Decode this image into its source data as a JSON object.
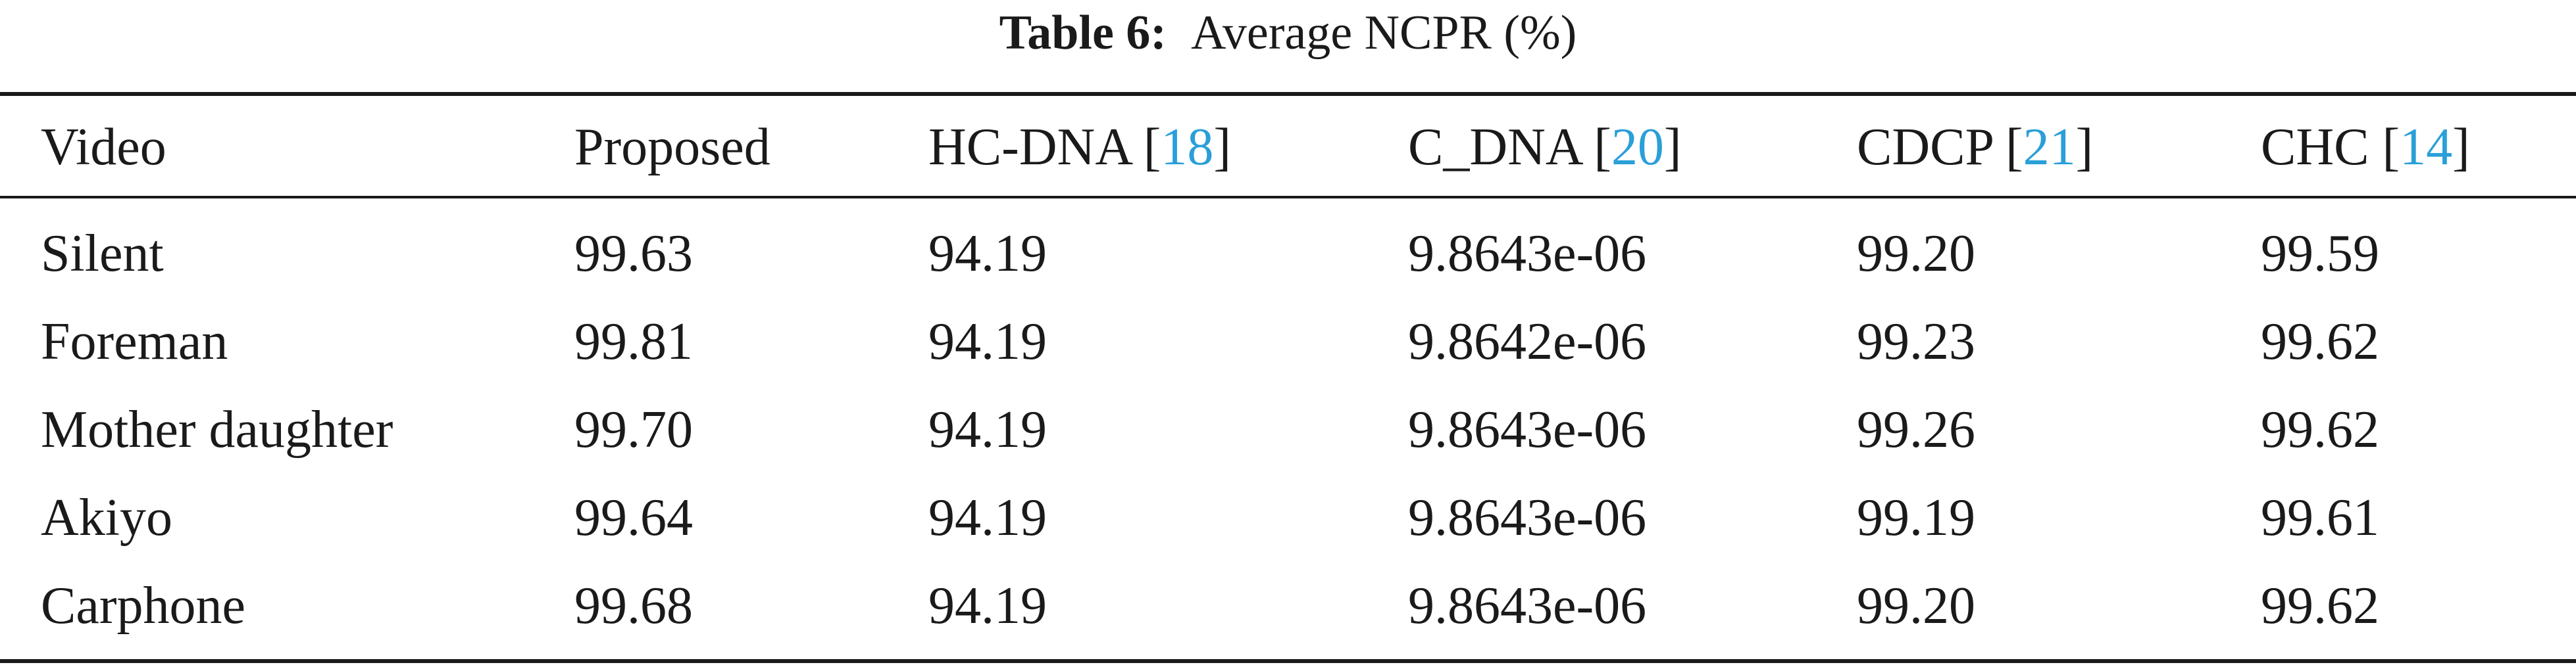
{
  "caption": {
    "label": "Table 6:",
    "title": "Average NCPR (%)"
  },
  "chart_data": {
    "type": "table",
    "title": "Average NCPR (%)",
    "columns": [
      {
        "name": "Video",
        "ref": ""
      },
      {
        "name": "Proposed",
        "ref": ""
      },
      {
        "name": "HC-DNA",
        "ref": "18"
      },
      {
        "name": "C_DNA",
        "ref": "20"
      },
      {
        "name": "CDCP",
        "ref": "21"
      },
      {
        "name": "CHC",
        "ref": "14"
      }
    ],
    "rows": [
      [
        "Silent",
        "99.63",
        "94.19",
        "9.8643e-06",
        "99.20",
        "99.59"
      ],
      [
        "Foreman",
        "99.81",
        "94.19",
        "9.8642e-06",
        "99.23",
        "99.62"
      ],
      [
        "Mother daughter",
        "99.70",
        "94.19",
        "9.8643e-06",
        "99.26",
        "99.62"
      ],
      [
        "Akiyo",
        "99.64",
        "94.19",
        "9.8643e-06",
        "99.19",
        "99.61"
      ],
      [
        "Carphone",
        "99.68",
        "94.19",
        "9.8643e-06",
        "99.20",
        "99.62"
      ]
    ]
  },
  "colors": {
    "text": "#1a1a1a",
    "citation_link": "#2a9fd8"
  }
}
